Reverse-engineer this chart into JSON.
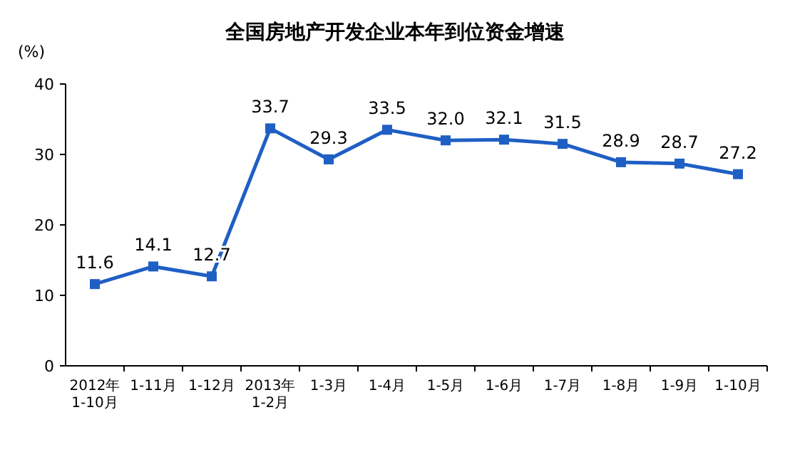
{
  "chart_data": {
    "type": "line",
    "title": "全国房地产开发企业本年到位资金增速",
    "ylabel": "(%)",
    "categories": [
      "2012年\n1-10月",
      "1-11月",
      "1-12月",
      "2013年\n1-2月",
      "1-3月",
      "1-4月",
      "1-5月",
      "1-6月",
      "1-7月",
      "1-8月",
      "1-9月",
      "1-10月"
    ],
    "series": [
      {
        "color": "#1f5fc4",
        "values": [
          11.6,
          14.1,
          12.7,
          33.7,
          29.3,
          33.5,
          32.0,
          32.1,
          31.5,
          28.9,
          28.7,
          27.2
        ]
      }
    ],
    "value_labels": [
      "11.6",
      "14.1",
      "12.7",
      "33.7",
      "29.3",
      "33.5",
      "32.0",
      "32.1",
      "31.5",
      "28.9",
      "28.7",
      "27.2"
    ],
    "ylim": [
      0,
      40
    ],
    "yticks": [
      0,
      10,
      20,
      30,
      40
    ],
    "marker": "square",
    "line_style": "solid"
  }
}
